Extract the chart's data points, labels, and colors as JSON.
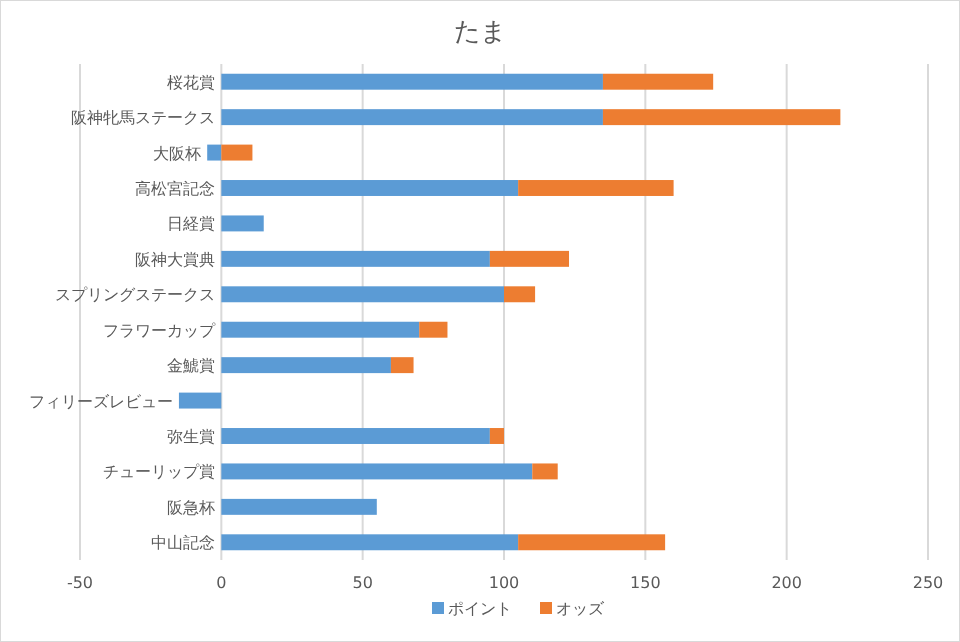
{
  "chart_data": {
    "type": "bar",
    "orientation": "horizontal",
    "stacked": true,
    "title": "たま",
    "categories": [
      "桜花賞",
      "阪神牝馬ステークス",
      "大阪杯",
      "高松宮記念",
      "日経賞",
      "阪神大賞典",
      "スプリングステークス",
      "フラワーカップ",
      "金鯱賞",
      "フィリーズレビュー",
      "弥生賞",
      "チューリップ賞",
      "阪急杯",
      "中山記念"
    ],
    "series": [
      {
        "name": "ポイント",
        "color": "#5b9bd5",
        "values": [
          135,
          135,
          -5,
          105,
          15,
          95,
          100,
          70,
          60,
          -15,
          95,
          110,
          55,
          105
        ]
      },
      {
        "name": "オッズ",
        "color": "#ed7d31",
        "values": [
          39,
          84,
          11,
          55,
          0,
          28,
          11,
          10,
          8,
          0,
          5,
          9,
          0,
          52
        ]
      }
    ],
    "xlim": [
      -50,
      250
    ],
    "xticks": [
      -50,
      0,
      50,
      100,
      150,
      200,
      250
    ],
    "grid": "x",
    "legend": "bottom"
  }
}
